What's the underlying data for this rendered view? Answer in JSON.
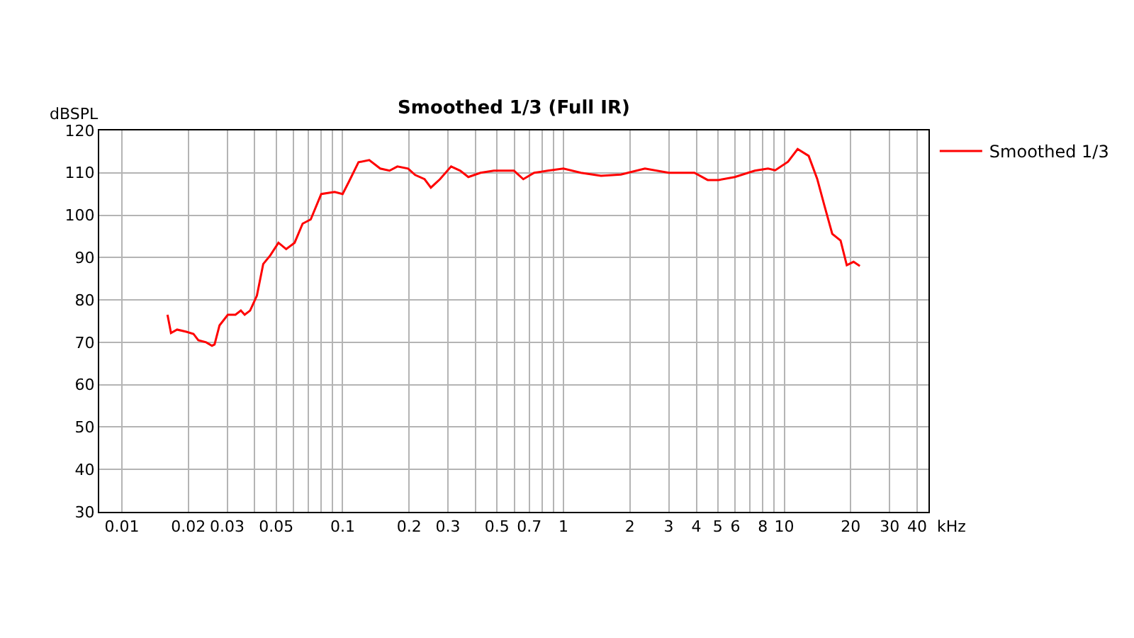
{
  "chart_data": {
    "type": "line",
    "title": "Smoothed 1/3 (Full IR)",
    "xlabel": "kHz",
    "ylabel": "dBSPL",
    "log": "x",
    "grid": true,
    "legend": "top right",
    "marker": "none",
    "line_style": "solid",
    "xlim": [
      0.0079,
      45
    ],
    "ylim": [
      30,
      120
    ],
    "xticks": [
      0.01,
      0.02,
      0.03,
      {
        "value": 0.04,
        "label": null
      },
      0.05,
      {
        "value": 0.06,
        "label": null
      },
      {
        "value": 0.07,
        "label": null
      },
      {
        "value": 0.08,
        "label": null
      },
      {
        "value": 0.09,
        "label": null
      },
      0.1,
      0.2,
      0.3,
      {
        "value": 0.4,
        "label": null
      },
      0.5,
      {
        "value": 0.6,
        "label": null
      },
      0.7,
      {
        "value": 0.8,
        "label": null
      },
      {
        "value": 0.9,
        "label": null
      },
      1,
      2,
      3,
      4,
      5,
      6,
      {
        "value": 7,
        "label": null
      },
      8,
      {
        "value": 9,
        "label": null
      },
      10,
      20,
      30,
      40
    ],
    "yticks": [
      30,
      40,
      50,
      60,
      70,
      80,
      90,
      100,
      110,
      120
    ],
    "series": [
      {
        "name": "Smoothed 1/3",
        "color": "#ff0000",
        "x": [
          0.0161,
          0.0167,
          0.0178,
          0.0196,
          0.0211,
          0.0222,
          0.0241,
          0.0256,
          0.0263,
          0.0277,
          0.0302,
          0.0327,
          0.0346,
          0.036,
          0.0381,
          0.0409,
          0.0437,
          0.047,
          0.0512,
          0.0555,
          0.0606,
          0.0659,
          0.0717,
          0.08,
          0.092,
          0.1,
          0.107,
          0.118,
          0.132,
          0.148,
          0.163,
          0.177,
          0.198,
          0.213,
          0.235,
          0.251,
          0.276,
          0.31,
          0.341,
          0.371,
          0.421,
          0.484,
          0.597,
          0.658,
          0.737,
          0.85,
          1,
          1.2,
          1.48,
          1.82,
          2.34,
          3.0,
          3.92,
          4.5,
          5.04,
          5.97,
          7.36,
          8.44,
          9.1,
          10.4,
          11.5,
          12.9,
          14.1,
          15.2,
          16.5,
          18.0,
          19.2,
          20.6,
          22.0
        ],
        "values": [
          76.5,
          72.2,
          73,
          72.5,
          72,
          70.5,
          70,
          69.2,
          69.5,
          74,
          76.5,
          76.5,
          77.5,
          76.5,
          77.5,
          81,
          88.5,
          90.5,
          93.5,
          92,
          93.5,
          98,
          99,
          105,
          105.5,
          105,
          108,
          112.5,
          113,
          111,
          110.5,
          111.5,
          111,
          109.5,
          108.5,
          106.5,
          108.5,
          111.5,
          110.5,
          109,
          110,
          110.5,
          110.5,
          108.5,
          110,
          110.5,
          111,
          110,
          109.3,
          109.6,
          111,
          110,
          110,
          108.3,
          108.3,
          109,
          110.5,
          111,
          110.6,
          112.6,
          115.6,
          114,
          108.6,
          102.3,
          95.6,
          94,
          88.2,
          89,
          88
        ]
      }
    ]
  }
}
